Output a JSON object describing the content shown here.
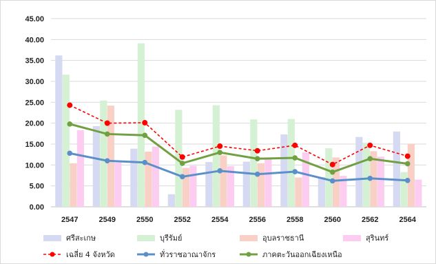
{
  "chart_data": {
    "type": "bar",
    "categories": [
      "2547",
      "2549",
      "2550",
      "2552",
      "2554",
      "2556",
      "2558",
      "2560",
      "2562",
      "2564"
    ],
    "ylim": [
      0,
      45
    ],
    "yticks": [
      "0.00",
      "5.00",
      "10.00",
      "15.00",
      "20.00",
      "25.00",
      "30.00",
      "35.00",
      "40.00",
      "45.00"
    ],
    "grid": true,
    "legend_position": "bottom",
    "bar_series": [
      {
        "name": "ศรีสะเกษ",
        "color": "#d6d9f2",
        "values": [
          36.2,
          19.3,
          13.9,
          3.0,
          10.7,
          10.8,
          17.3,
          7.1,
          16.7,
          18.0
        ]
      },
      {
        "name": "บุรีรัมย์",
        "color": "#d5f1d3",
        "values": [
          31.6,
          25.4,
          39.1,
          23.2,
          24.3,
          20.9,
          21.0,
          14.0,
          15.3,
          8.3
        ]
      },
      {
        "name": "อุบลราชธานี",
        "color": "#f8d0c6",
        "values": [
          10.4,
          24.2,
          13.2,
          9.3,
          12.3,
          10.4,
          7.0,
          11.8,
          13.3,
          15.1
        ]
      },
      {
        "name": "สุรินทร์",
        "color": "#fccdf0",
        "values": [
          18.3,
          10.6,
          14.4,
          9.8,
          9.7,
          11.6,
          13.0,
          7.4,
          12.0,
          6.5
        ]
      }
    ],
    "line_series": [
      {
        "name": "เฉลี่ย 4 จังหวัด",
        "color": "#ff0000",
        "style": "dashed",
        "values": [
          24.3,
          20.0,
          20.1,
          11.9,
          14.5,
          13.4,
          14.7,
          10.1,
          14.7,
          12.1
        ]
      },
      {
        "name": "ทั่วราชอาณาจักร",
        "color": "#5b8fc9",
        "style": "solid",
        "values": [
          12.8,
          11.0,
          10.6,
          7.2,
          8.6,
          7.8,
          8.4,
          6.2,
          6.8,
          6.3
        ]
      },
      {
        "name": "ภาคตะวันออกเฉียงเหนือ",
        "color": "#70a041",
        "style": "solid",
        "values": [
          19.8,
          17.4,
          17.1,
          10.4,
          13.0,
          11.5,
          11.7,
          8.3,
          11.5,
          10.3
        ]
      }
    ]
  }
}
